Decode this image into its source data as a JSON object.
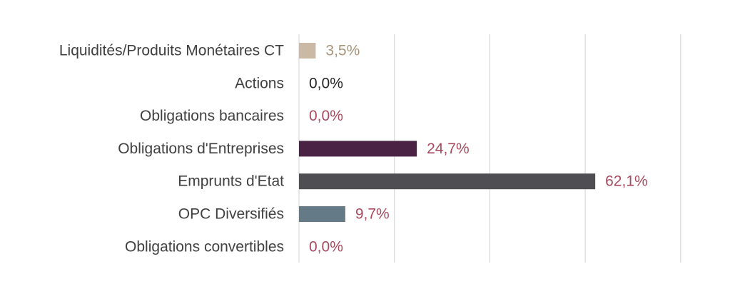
{
  "chart_data": {
    "type": "bar",
    "orientation": "horizontal",
    "categories": [
      "Liquidités/Produits Monétaires CT",
      "Actions",
      "Obligations bancaires",
      "Obligations d'Entreprises",
      "Emprunts d'Etat",
      "OPC Diversifiés",
      "Obligations convertibles"
    ],
    "values": [
      3.5,
      0.0,
      0.0,
      24.7,
      62.1,
      9.7,
      0.0
    ],
    "value_labels": [
      "3,5%",
      "0,0%",
      "0,0%",
      "24,7%",
      "62,1%",
      "9,7%",
      "0,0%"
    ],
    "bar_colors": [
      "#C9B9A5",
      "#3B3B3B",
      "#9E3D52",
      "#4A2344",
      "#4F4F53",
      "#647A86",
      "#9E3D52"
    ],
    "label_colors": [
      "#A8957A",
      "#262626",
      "#A84A5E",
      "#A84A5E",
      "#A84A5E",
      "#A84A5E",
      "#A84A5E"
    ],
    "xlim": [
      0,
      80
    ],
    "grid": true,
    "legend": "none"
  }
}
